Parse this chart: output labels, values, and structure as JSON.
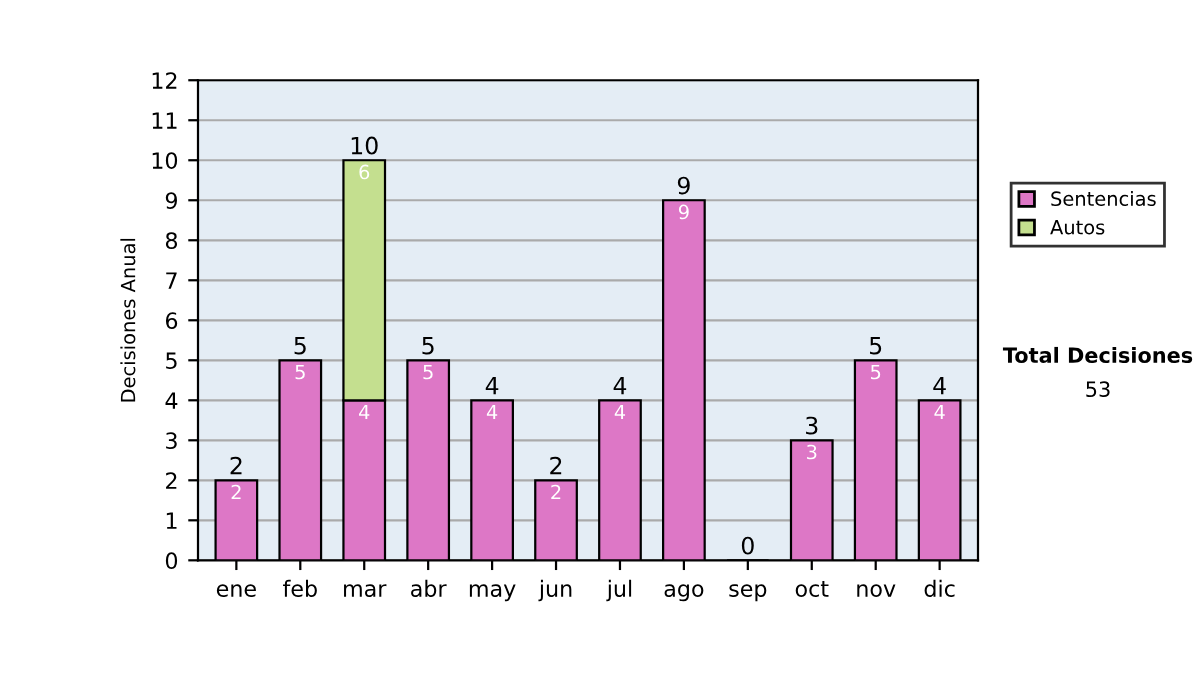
{
  "chart_data": {
    "type": "bar",
    "stacked": true,
    "ylabel": "Decisiones Anual",
    "categories": [
      "ene",
      "feb",
      "mar",
      "abr",
      "may",
      "jun",
      "jul",
      "ago",
      "sep",
      "oct",
      "nov",
      "dic"
    ],
    "series": [
      {
        "name": "Sentencias",
        "color": "#dd77c6",
        "values": [
          2,
          5,
          4,
          5,
          4,
          2,
          4,
          9,
          0,
          3,
          5,
          4
        ],
        "value_labels": [
          "2",
          "5",
          "4",
          "5",
          "4",
          "2",
          "4",
          "9",
          null,
          "3",
          "5",
          "4"
        ]
      },
      {
        "name": "Autos",
        "color": "#c4df8f",
        "values": [
          null,
          null,
          6,
          null,
          null,
          null,
          null,
          null,
          null,
          null,
          null,
          null
        ],
        "value_labels": [
          null,
          null,
          "6",
          null,
          null,
          null,
          null,
          null,
          null,
          null,
          null,
          null
        ]
      }
    ],
    "totals": [
      "2",
      "5",
      "10",
      "5",
      "4",
      "2",
      "4",
      "9",
      "0",
      "3",
      "5",
      "4"
    ],
    "ylim": [
      0,
      12
    ],
    "yticks": [
      0,
      1,
      2,
      3,
      4,
      5,
      6,
      7,
      8,
      9,
      10,
      11,
      12
    ],
    "grid": "y",
    "legend": "right",
    "annotations": [
      "Total Decisiones",
      "53"
    ]
  }
}
